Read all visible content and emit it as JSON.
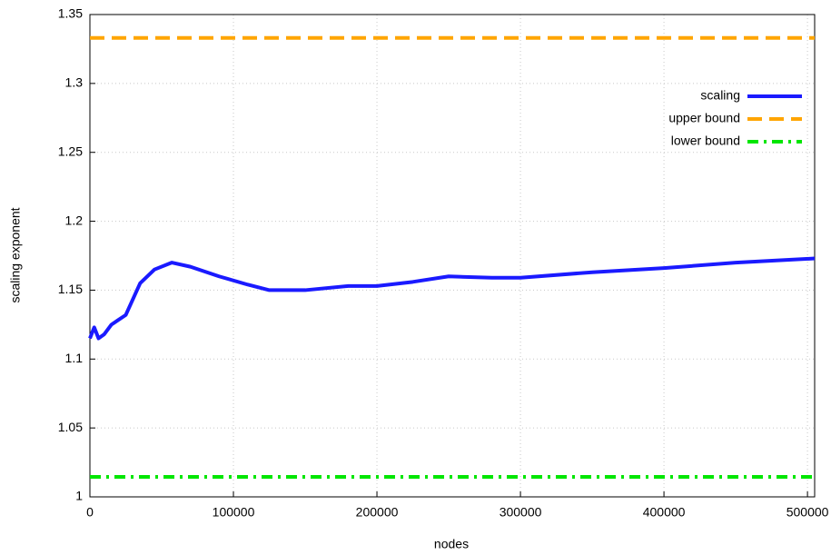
{
  "chart_data": {
    "type": "line",
    "xlabel": "nodes",
    "ylabel": "scaling exponent",
    "xlim": [
      0,
      505000
    ],
    "xticks": [
      0,
      100000,
      200000,
      300000,
      400000,
      500000
    ],
    "ylim": [
      1,
      1.35
    ],
    "yticks": [
      1,
      1.05,
      1.1,
      1.15,
      1.2,
      1.25,
      1.3,
      1.35
    ],
    "grid": true,
    "legend": "top-right",
    "series": [
      {
        "name": "scaling",
        "color": "#1a1aff",
        "style": "solid",
        "x": [
          0,
          3000,
          6000,
          10000,
          15000,
          25000,
          35000,
          45000,
          57000,
          70000,
          90000,
          110000,
          125000,
          150000,
          180000,
          200000,
          225000,
          250000,
          280000,
          300000,
          350000,
          400000,
          450000,
          505000
        ],
        "values": [
          1.115,
          1.123,
          1.115,
          1.118,
          1.125,
          1.132,
          1.155,
          1.165,
          1.17,
          1.167,
          1.16,
          1.154,
          1.15,
          1.15,
          1.153,
          1.153,
          1.156,
          1.16,
          1.159,
          1.159,
          1.163,
          1.166,
          1.17,
          1.173
        ]
      },
      {
        "name": "upper bound",
        "color": "#ffa500",
        "style": "dashed",
        "x": [
          0,
          505000
        ],
        "values": [
          1.333,
          1.333
        ]
      },
      {
        "name": "lower bound",
        "color": "#00e600",
        "style": "dashdot",
        "x": [
          0,
          505000
        ],
        "values": [
          1.0145,
          1.0145
        ]
      }
    ]
  }
}
